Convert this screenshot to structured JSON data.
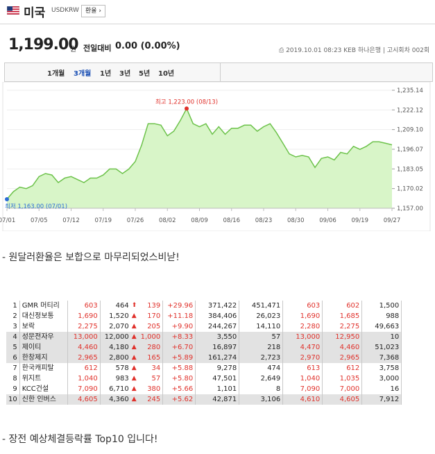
{
  "header": {
    "title": "미국",
    "code": "USDKRW",
    "button_label": "환율 ›"
  },
  "price": {
    "value": "1,199.00",
    "unit": "원",
    "change_label": "전일대비",
    "change_value": "0.00 (0.00%)",
    "meta": "2019.10.01 08:23  KEB 하나은행  |  고시회차 002회"
  },
  "tabs": [
    {
      "label": "1개월",
      "active": false
    },
    {
      "label": "3개월",
      "active": true
    },
    {
      "label": "1년",
      "active": false
    },
    {
      "label": "3년",
      "active": false
    },
    {
      "label": "5년",
      "active": false
    },
    {
      "label": "10년",
      "active": false
    }
  ],
  "chart_data": {
    "type": "area",
    "x_labels": [
      "07/01",
      "07/05",
      "07/12",
      "07/19",
      "07/26",
      "08/02",
      "08/09",
      "08/16",
      "08/23",
      "08/30",
      "09/06",
      "09/19",
      "09/27"
    ],
    "y_ticks": [
      "1,235.14",
      "1,222.12",
      "1,209.10",
      "1,196.07",
      "1,183.05",
      "1,170.02",
      "1,157.00"
    ],
    "ylim": [
      1157.0,
      1235.14
    ],
    "values": [
      1163,
      1168,
      1171,
      1170,
      1172,
      1178,
      1180,
      1179,
      1174,
      1177,
      1178,
      1176,
      1174,
      1177,
      1177,
      1179,
      1183,
      1183,
      1180,
      1183,
      1188,
      1199,
      1213,
      1213,
      1212,
      1205,
      1208,
      1215,
      1223,
      1213,
      1211,
      1213,
      1206,
      1211,
      1206,
      1210,
      1210,
      1212,
      1212,
      1208,
      1211,
      1213,
      1207,
      1200,
      1193,
      1191,
      1192,
      1191,
      1184,
      1190,
      1191,
      1189,
      1194,
      1193,
      1198,
      1196,
      1198,
      1201,
      1201,
      1200,
      1199
    ],
    "max_label": "최고 1,223.00 (08/13)",
    "min_label": "최저 1,163.00 (07/01)",
    "colors": {
      "line": "#6cc24a",
      "fill": "#d8f5c8",
      "max_dot": "#e0312b",
      "min_dot": "#2b6cd6"
    }
  },
  "note1": "- 원달러환율은 보합으로 마무리되었스비낟!",
  "table": {
    "rows": [
      {
        "rank": "1",
        "name": "GMR 머티리",
        "c1": "603",
        "price": "464",
        "dir": "up",
        "diff": "139",
        "rate": "+29.96",
        "vol1": "371,422",
        "vol2": "451,471",
        "c2": "603",
        "c3": "602",
        "c4": "1,500"
      },
      {
        "rank": "2",
        "name": "대신정보통",
        "c1": "1,690",
        "price": "1,520",
        "dir": "tri",
        "diff": "170",
        "rate": "+11.18",
        "vol1": "384,406",
        "vol2": "26,023",
        "c2": "1,690",
        "c3": "1,685",
        "c4": "988"
      },
      {
        "rank": "3",
        "name": "보락",
        "c1": "2,275",
        "price": "2,070",
        "dir": "tri",
        "diff": "205",
        "rate": "+9.90",
        "vol1": "244,267",
        "vol2": "14,110",
        "c2": "2,280",
        "c3": "2,275",
        "c4": "49,663"
      },
      {
        "rank": "4",
        "name": "성문전자우",
        "c1": "13,000",
        "price": "12,000",
        "dir": "tri",
        "diff": "1,000",
        "rate": "+8.33",
        "vol1": "3,550",
        "vol2": "57",
        "c2": "13,000",
        "c3": "12,950",
        "c4": "10"
      },
      {
        "rank": "5",
        "name": "제이티",
        "c1": "4,460",
        "price": "4,180",
        "dir": "tri",
        "diff": "280",
        "rate": "+6.70",
        "vol1": "16,897",
        "vol2": "218",
        "c2": "4,470",
        "c3": "4,460",
        "c4": "51,023"
      },
      {
        "rank": "6",
        "name": "한창제지",
        "c1": "2,965",
        "price": "2,800",
        "dir": "tri",
        "diff": "165",
        "rate": "+5.89",
        "vol1": "161,274",
        "vol2": "2,723",
        "c2": "2,970",
        "c3": "2,965",
        "c4": "7,368"
      },
      {
        "rank": "7",
        "name": "한국캐피탈",
        "c1": "612",
        "price": "578",
        "dir": "tri",
        "diff": "34",
        "rate": "+5.88",
        "vol1": "9,278",
        "vol2": "474",
        "c2": "613",
        "c3": "612",
        "c4": "3,758"
      },
      {
        "rank": "8",
        "name": "위지트",
        "c1": "1,040",
        "price": "983",
        "dir": "tri",
        "diff": "57",
        "rate": "+5.80",
        "vol1": "47,501",
        "vol2": "2,649",
        "c2": "1,040",
        "c3": "1,035",
        "c4": "3,000"
      },
      {
        "rank": "9",
        "name": "KCC건설",
        "c1": "7,090",
        "price": "6,710",
        "dir": "tri",
        "diff": "380",
        "rate": "+5.66",
        "vol1": "1,101",
        "vol2": "8",
        "c2": "7,090",
        "c3": "7,000",
        "c4": "16"
      },
      {
        "rank": "10",
        "name": "신한 인버스",
        "c1": "4,605",
        "price": "4,360",
        "dir": "tri",
        "diff": "245",
        "rate": "+5.62",
        "vol1": "42,871",
        "vol2": "3,106",
        "c2": "4,610",
        "c3": "4,605",
        "c4": "7,912"
      }
    ],
    "gray_rows": [
      3,
      4,
      5,
      9
    ]
  },
  "note2": "- 장전 예상체결등락률 Top10 입니다!"
}
